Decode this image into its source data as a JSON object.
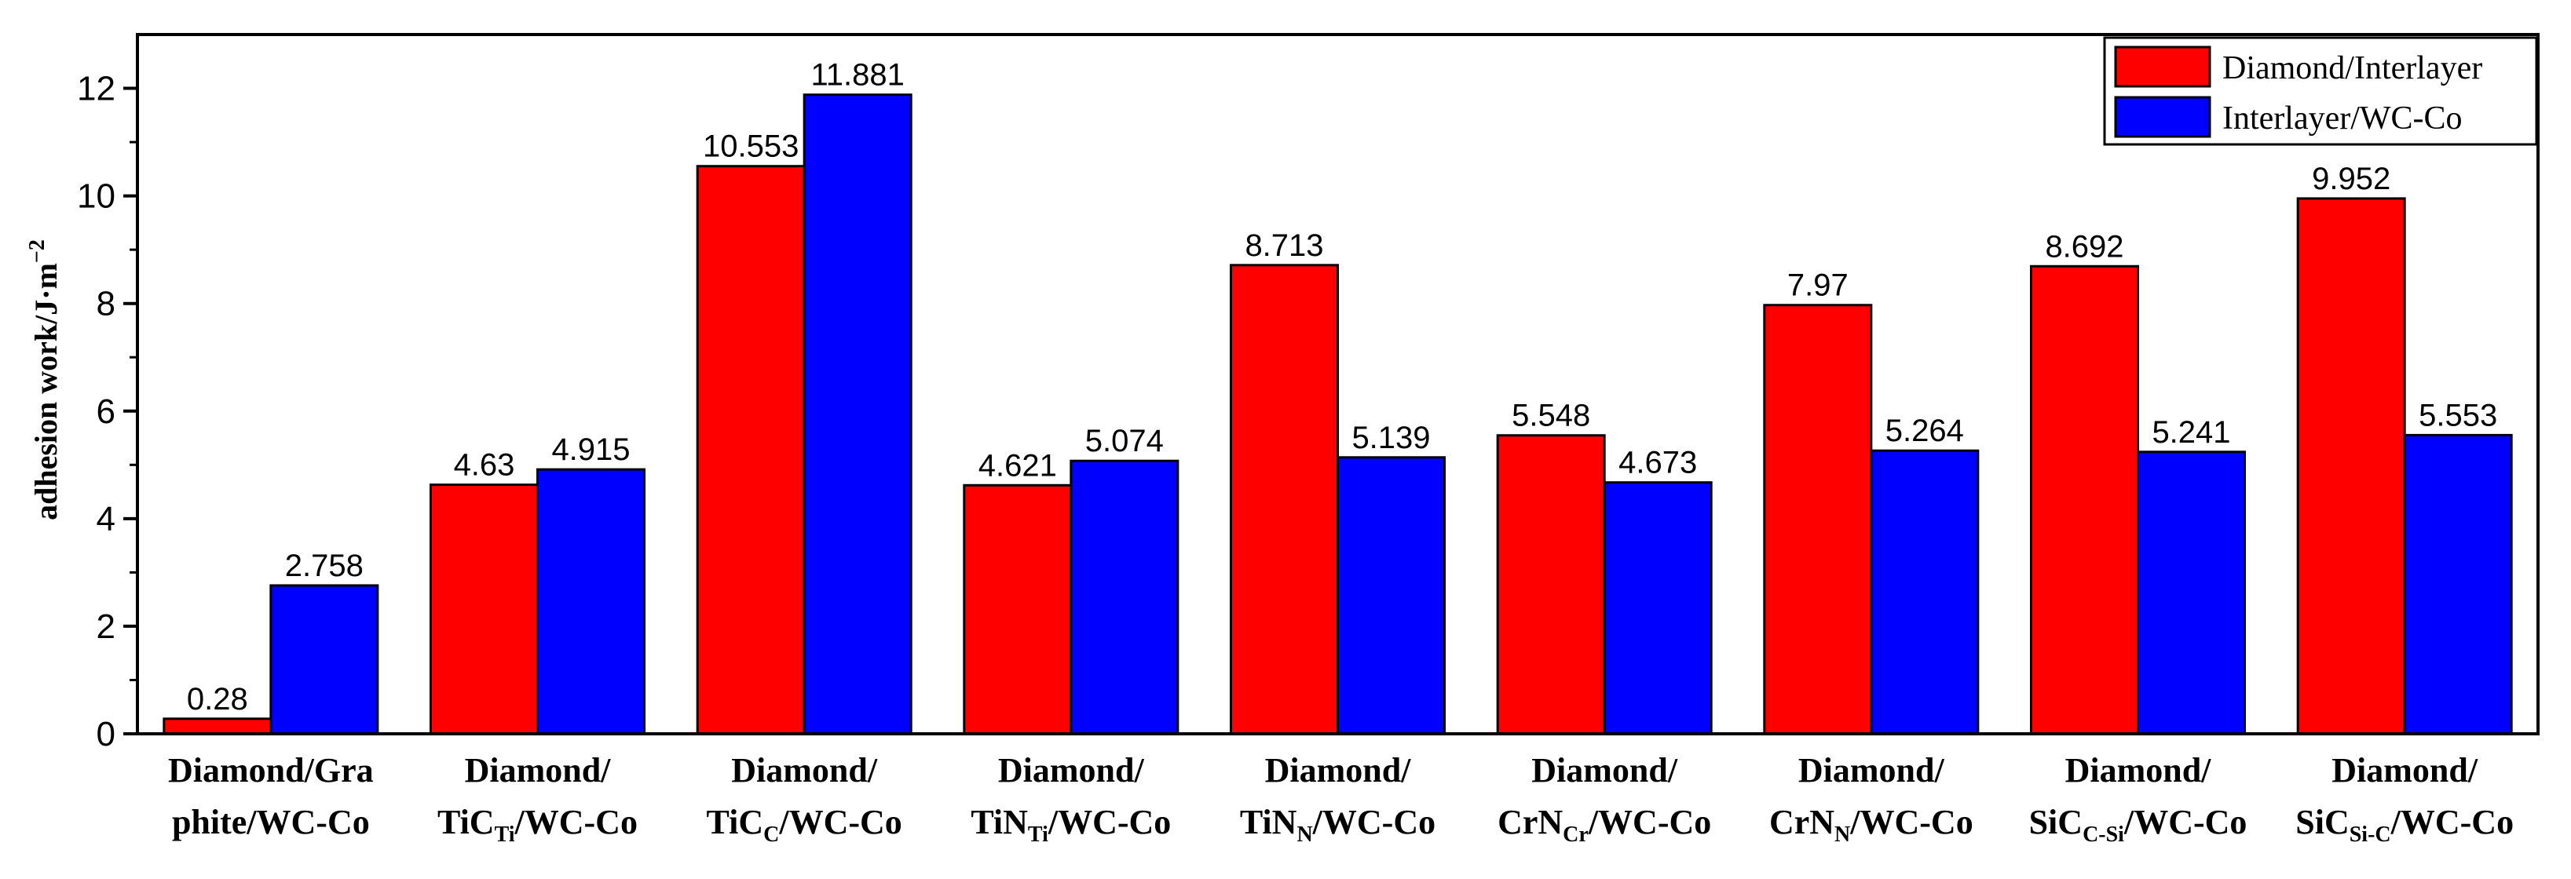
{
  "chart_data": {
    "type": "bar",
    "title": "",
    "xlabel": "",
    "ylabel": "adhesion work/J·m",
    "ylabel_sup": "−2",
    "ylim": [
      0,
      13
    ],
    "yticks": [
      "0",
      "2",
      "4",
      "6",
      "8",
      "10",
      "12"
    ],
    "categories": [
      {
        "lines": [
          [
            {
              "t": "Diamond/Gra"
            }
          ],
          [
            {
              "t": "phite/WC-Co"
            }
          ]
        ]
      },
      {
        "lines": [
          [
            {
              "t": "Diamond/"
            }
          ],
          [
            {
              "t": "TiC"
            },
            {
              "t": "Ti",
              "sub": true
            },
            {
              "t": "/WC-Co"
            }
          ]
        ]
      },
      {
        "lines": [
          [
            {
              "t": "Diamond/"
            }
          ],
          [
            {
              "t": "TiC"
            },
            {
              "t": "C",
              "sub": true
            },
            {
              "t": "/WC-Co"
            }
          ]
        ]
      },
      {
        "lines": [
          [
            {
              "t": "Diamond/"
            }
          ],
          [
            {
              "t": "TiN"
            },
            {
              "t": "Ti",
              "sub": true
            },
            {
              "t": "/WC-Co"
            }
          ]
        ]
      },
      {
        "lines": [
          [
            {
              "t": "Diamond/"
            }
          ],
          [
            {
              "t": "TiN"
            },
            {
              "t": "N",
              "sub": true
            },
            {
              "t": "/WC-Co"
            }
          ]
        ]
      },
      {
        "lines": [
          [
            {
              "t": "Diamond/"
            }
          ],
          [
            {
              "t": "CrN"
            },
            {
              "t": "Cr",
              "sub": true
            },
            {
              "t": "/WC-Co"
            }
          ]
        ]
      },
      {
        "lines": [
          [
            {
              "t": "Diamond/"
            }
          ],
          [
            {
              "t": "CrN"
            },
            {
              "t": "N",
              "sub": true
            },
            {
              "t": "/WC-Co"
            }
          ]
        ]
      },
      {
        "lines": [
          [
            {
              "t": "Diamond/"
            }
          ],
          [
            {
              "t": "SiC"
            },
            {
              "t": "C-Si",
              "sub": true
            },
            {
              "t": "/WC-Co"
            }
          ]
        ]
      },
      {
        "lines": [
          [
            {
              "t": "Diamond/"
            }
          ],
          [
            {
              "t": "SiC"
            },
            {
              "t": "Si-C",
              "sub": true
            },
            {
              "t": "/WC-Co"
            }
          ]
        ]
      }
    ],
    "series": [
      {
        "name": "Diamond/Interlayer",
        "color": "#ff0000",
        "values": [
          0.28,
          4.63,
          10.553,
          4.621,
          8.713,
          5.548,
          7.97,
          8.692,
          9.952
        ],
        "labels": [
          "0.28",
          "4.63",
          "10.553",
          "4.621",
          "8.713",
          "5.548",
          "7.97",
          "8.692",
          "9.952"
        ]
      },
      {
        "name": "Interlayer/WC-Co",
        "color": "#0000ff",
        "values": [
          2.758,
          4.915,
          11.881,
          5.074,
          5.139,
          4.673,
          5.264,
          5.241,
          5.553
        ],
        "labels": [
          "2.758",
          "4.915",
          "11.881",
          "5.074",
          "5.139",
          "4.673",
          "5.264",
          "5.241",
          "5.553"
        ]
      }
    ],
    "legend": "top-right",
    "grid": false
  }
}
